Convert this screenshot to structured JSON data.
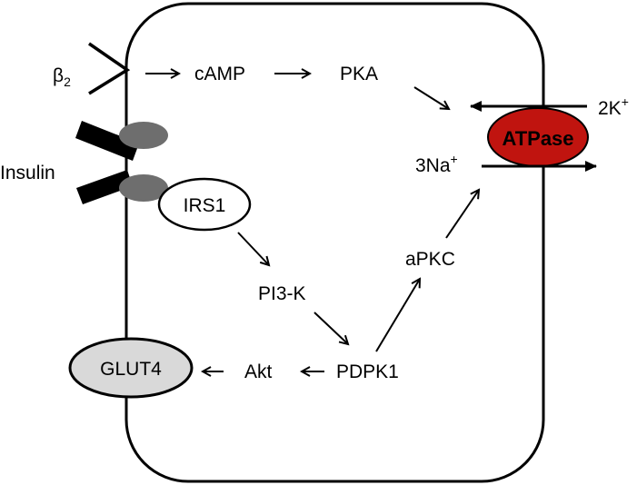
{
  "labels": {
    "beta_symbol": "β",
    "beta_subscript": "2",
    "camp": "cAMP",
    "pka": "PKA",
    "insulin": "Insulin",
    "irs1": "IRS1",
    "pi3k": "PI3-K",
    "pdpk1": "PDPK1",
    "akt": "Akt",
    "apkc": "aPKC",
    "glut4": "GLUT4",
    "atpase": "ATPase",
    "potassium_count": "2K",
    "potassium_charge": "+",
    "sodium_count": "3Na",
    "sodium_charge": "+"
  },
  "colors": {
    "atpase_fill": "#c0140f",
    "atpase_text": "#3a0000",
    "receptor_grey": "#6e6e6e",
    "glut4_fill": "#d9d9d9"
  }
}
